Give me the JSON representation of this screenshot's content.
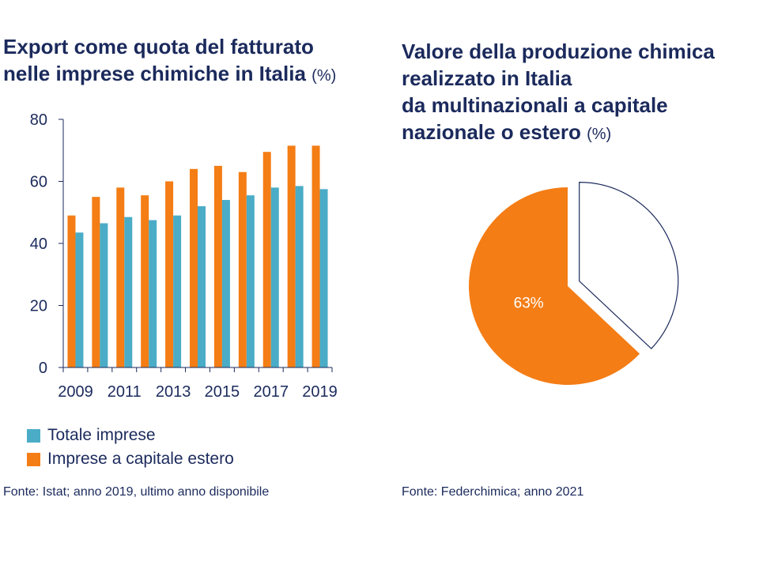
{
  "left_chart": {
    "title_line1": "Export come quota del fatturato",
    "title_line2": "nelle imprese chimiche in Italia",
    "title_unit": "(%)",
    "source": "Fonte: Istat; anno 2019, ultimo anno disponibile",
    "legend": [
      "Totale imprese",
      "Imprese a capitale estero"
    ]
  },
  "right_chart": {
    "title_line1": "Valore della produzione chimica",
    "title_line2": "realizzato in Italia",
    "title_line3": "da multinazionali a capitale",
    "title_line4": "nazionale o estero",
    "title_unit": "(%)",
    "source": "Fonte: Federchimica; anno 2021",
    "slice_label": "63%"
  },
  "chart_data": [
    {
      "type": "bar",
      "categories": [
        "2009",
        "2010",
        "2011",
        "2012",
        "2013",
        "2014",
        "2015",
        "2016",
        "2017",
        "2018",
        "2019"
      ],
      "x_tick_labels": [
        "2009",
        "2011",
        "2013",
        "2015",
        "2017",
        "2019"
      ],
      "series": [
        {
          "name": "Totale imprese",
          "color": "#4aacc6",
          "values": [
            43.5,
            46.5,
            48.5,
            47.5,
            49,
            52,
            54,
            55.5,
            58,
            58.5,
            57.5
          ]
        },
        {
          "name": "Imprese a capitale estero",
          "color": "#f47d15",
          "values": [
            49,
            55,
            58,
            55.5,
            60,
            64,
            65,
            63,
            69.5,
            71.5,
            71.5
          ]
        }
      ],
      "ylim": [
        0,
        80
      ],
      "yticks": [
        0,
        20,
        40,
        60,
        80
      ],
      "grid": false,
      "legend": "bottom-left"
    },
    {
      "type": "pie",
      "slices": [
        {
          "value": 63,
          "label": "63%",
          "color": "#f47d15"
        },
        {
          "value": 37,
          "label": "",
          "color": "#ffffff"
        }
      ],
      "outline_color": "#1b2a5c",
      "exploded_slice": 1
    }
  ]
}
